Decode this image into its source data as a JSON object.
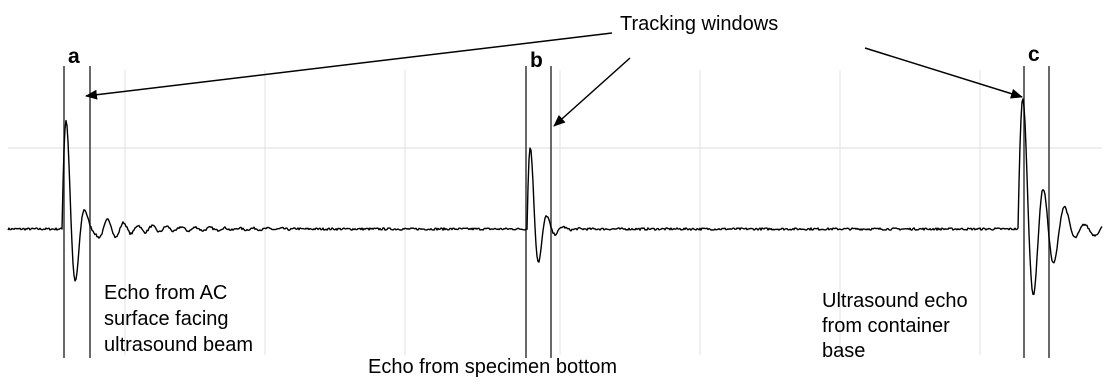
{
  "title_label": "Tracking windows",
  "markers": [
    "a",
    "b",
    "c"
  ],
  "annotations": {
    "echo_a_lines": [
      "Echo from AC",
      "surface facing",
      "ultrasound beam"
    ],
    "echo_b": "Echo from specimen bottom",
    "echo_c_lines": [
      "Ultrasound echo",
      "from container",
      "base"
    ]
  },
  "colors": {
    "signal": "#000000",
    "window_line": "#444444",
    "grid": "#d9d9d9"
  }
}
